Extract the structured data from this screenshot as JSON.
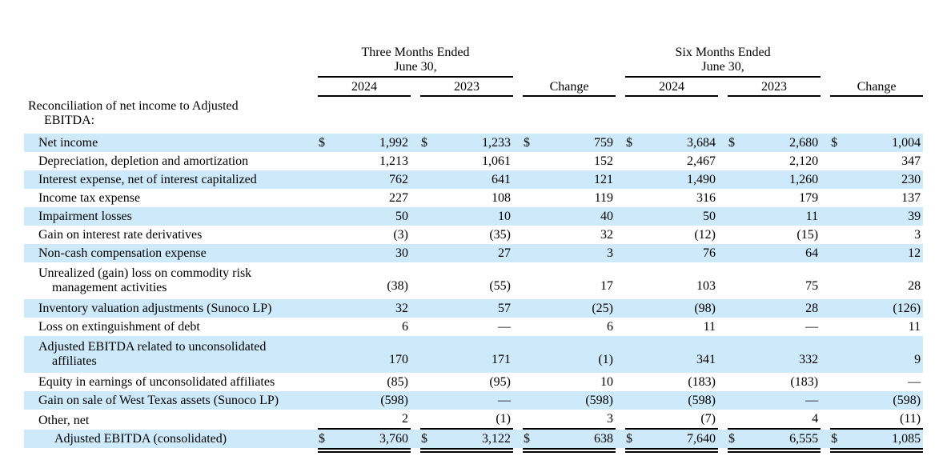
{
  "colors": {
    "row_highlight": "#CDE9FA",
    "rule": "#000000",
    "text": "#000000"
  },
  "table": {
    "currency_symbol": "$",
    "group_headers": [
      {
        "line1": "Three Months Ended",
        "line2": "June 30,"
      },
      {
        "line1": "Six Months Ended",
        "line2": "June 30,"
      }
    ],
    "column_headers": [
      "2024",
      "2023",
      "Change",
      "2024",
      "2023",
      "Change"
    ],
    "section_heading": {
      "line1": "Reconciliation of net income to Adjusted",
      "line2": "EBITDA:"
    },
    "rows": [
      {
        "label": "Net income",
        "dollar": true,
        "shaded": true,
        "values": [
          "1,992",
          "1,233",
          "759",
          "3,684",
          "2,680",
          "1,004"
        ]
      },
      {
        "label": "Depreciation, depletion and amortization",
        "dollar": false,
        "shaded": false,
        "values": [
          "1,213",
          "1,061",
          "152",
          "2,467",
          "2,120",
          "347"
        ]
      },
      {
        "label": "Interest expense, net of interest capitalized",
        "dollar": false,
        "shaded": true,
        "values": [
          "762",
          "641",
          "121",
          "1,490",
          "1,260",
          "230"
        ]
      },
      {
        "label": "Income tax expense",
        "dollar": false,
        "shaded": false,
        "values": [
          "227",
          "108",
          "119",
          "316",
          "179",
          "137"
        ]
      },
      {
        "label": "Impairment losses",
        "dollar": false,
        "shaded": true,
        "values": [
          "50",
          "10",
          "40",
          "50",
          "11",
          "39"
        ]
      },
      {
        "label": "Gain on interest rate derivatives",
        "dollar": false,
        "shaded": false,
        "values": [
          "(3)",
          "(35)",
          "32",
          "(12)",
          "(15)",
          "3"
        ]
      },
      {
        "label": "Non-cash compensation expense",
        "dollar": false,
        "shaded": true,
        "values": [
          "30",
          "27",
          "3",
          "76",
          "64",
          "12"
        ]
      },
      {
        "label": "Unrealized (gain) loss on commodity risk",
        "label2": "management activities",
        "dollar": false,
        "shaded": false,
        "values": [
          "(38)",
          "(55)",
          "17",
          "103",
          "75",
          "28"
        ]
      },
      {
        "label": "Inventory valuation adjustments (Sunoco LP)",
        "dollar": false,
        "shaded": true,
        "values": [
          "32",
          "57",
          "(25)",
          "(98)",
          "28",
          "(126)"
        ]
      },
      {
        "label": "Loss on extinguishment of debt",
        "dollar": false,
        "shaded": false,
        "values": [
          "6",
          "—",
          "6",
          "11",
          "—",
          "11"
        ]
      },
      {
        "label": "Adjusted EBITDA related to unconsolidated",
        "label2": "affiliates",
        "dollar": false,
        "shaded": true,
        "values": [
          "170",
          "171",
          "(1)",
          "341",
          "332",
          "9"
        ]
      },
      {
        "label": "Equity in earnings of unconsolidated affiliates",
        "dollar": false,
        "shaded": false,
        "values": [
          "(85)",
          "(95)",
          "10",
          "(183)",
          "(183)",
          "—"
        ]
      },
      {
        "label": "Gain on sale of West Texas assets (Sunoco LP)",
        "dollar": false,
        "shaded": true,
        "values": [
          "(598)",
          "—",
          "(598)",
          "(598)",
          "—",
          "(598)"
        ]
      },
      {
        "label": "Other, net",
        "dollar": false,
        "shaded": false,
        "rule_below": true,
        "values": [
          "2",
          "(1)",
          "3",
          "(7)",
          "4",
          "(11)"
        ]
      }
    ],
    "total_row": {
      "label": "Adjusted EBITDA (consolidated)",
      "dollar": true,
      "shaded": true,
      "values": [
        "3,760",
        "3,122",
        "638",
        "7,640",
        "6,555",
        "1,085"
      ]
    }
  }
}
